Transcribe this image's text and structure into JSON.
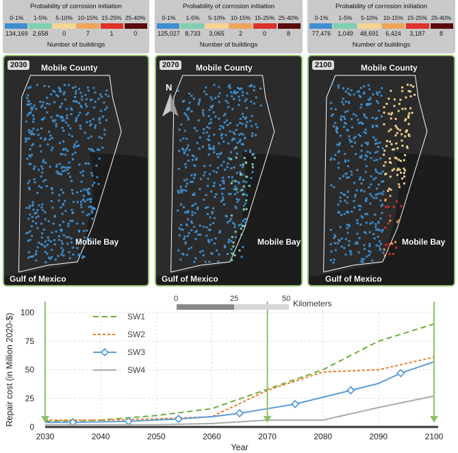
{
  "legend": {
    "title": "Probability of corrosion initiation",
    "subtitle": "Number of buildings",
    "categories": [
      "0-1%",
      "1-5%",
      "5-10%",
      "10-15%",
      "15-25%",
      "25-40%"
    ],
    "colors": [
      "#3f8fd0",
      "#7fd0b0",
      "#f5d590",
      "#f0a45a",
      "#e0302a",
      "#5a0a0a"
    ]
  },
  "panels": [
    {
      "year": "2030",
      "counts": [
        "134,169",
        "2,658",
        "0",
        "7",
        "1",
        "0"
      ]
    },
    {
      "year": "2070",
      "counts": [
        "125,027",
        "8,733",
        "3,065",
        "2",
        "0",
        "8"
      ]
    },
    {
      "year": "2100",
      "counts": [
        "77,476",
        "1,049",
        "48,691",
        "6,424",
        "3,187",
        "8"
      ]
    }
  ],
  "map_labels": {
    "county": "Mobile County",
    "bay": "Mobile Bay",
    "gulf": "Gulf of Mexico",
    "north": "N"
  },
  "scale_bar": {
    "ticks": [
      "0",
      "25",
      "50"
    ],
    "unit": "Kilometers"
  },
  "chart_data": {
    "type": "line",
    "xlabel": "Year",
    "ylabel": "Repair cost (in Million 2020-$)",
    "xlim": [
      2030,
      2100
    ],
    "ylim": [
      0,
      100
    ],
    "xticks": [
      2030,
      2040,
      2050,
      2060,
      2070,
      2080,
      2090,
      2100
    ],
    "yticks": [
      0,
      25,
      50,
      75,
      100
    ],
    "grid": true,
    "legend_position": "top-left",
    "series": [
      {
        "name": "SW1",
        "color": "#6aaa3a",
        "dash": "dashed",
        "x": [
          2030,
          2040,
          2050,
          2060,
          2070,
          2080,
          2090,
          2100
        ],
        "y": [
          5,
          6,
          10,
          16,
          33,
          50,
          75,
          90
        ]
      },
      {
        "name": "SW2",
        "color": "#f07a20",
        "dash": "dotted",
        "x": [
          2030,
          2040,
          2050,
          2060,
          2070,
          2080,
          2090,
          2100
        ],
        "y": [
          6,
          6,
          7,
          9,
          32,
          48,
          50,
          61
        ]
      },
      {
        "name": "SW3",
        "color": "#5b9bd5",
        "dash": "solid",
        "marker": "diamond",
        "x": [
          2030,
          2035,
          2045,
          2054,
          2060,
          2065,
          2070,
          2075,
          2080,
          2085,
          2090,
          2094,
          2100
        ],
        "y": [
          4,
          4,
          5,
          7,
          9,
          12,
          16,
          20,
          26,
          32,
          38,
          47,
          57
        ]
      },
      {
        "name": "SW4",
        "color": "#aaaaaa",
        "dash": "solid",
        "x": [
          2030,
          2040,
          2050,
          2060,
          2070,
          2080,
          2090,
          2100
        ],
        "y": [
          2,
          2,
          2,
          3,
          6,
          6,
          17,
          27
        ]
      }
    ]
  }
}
